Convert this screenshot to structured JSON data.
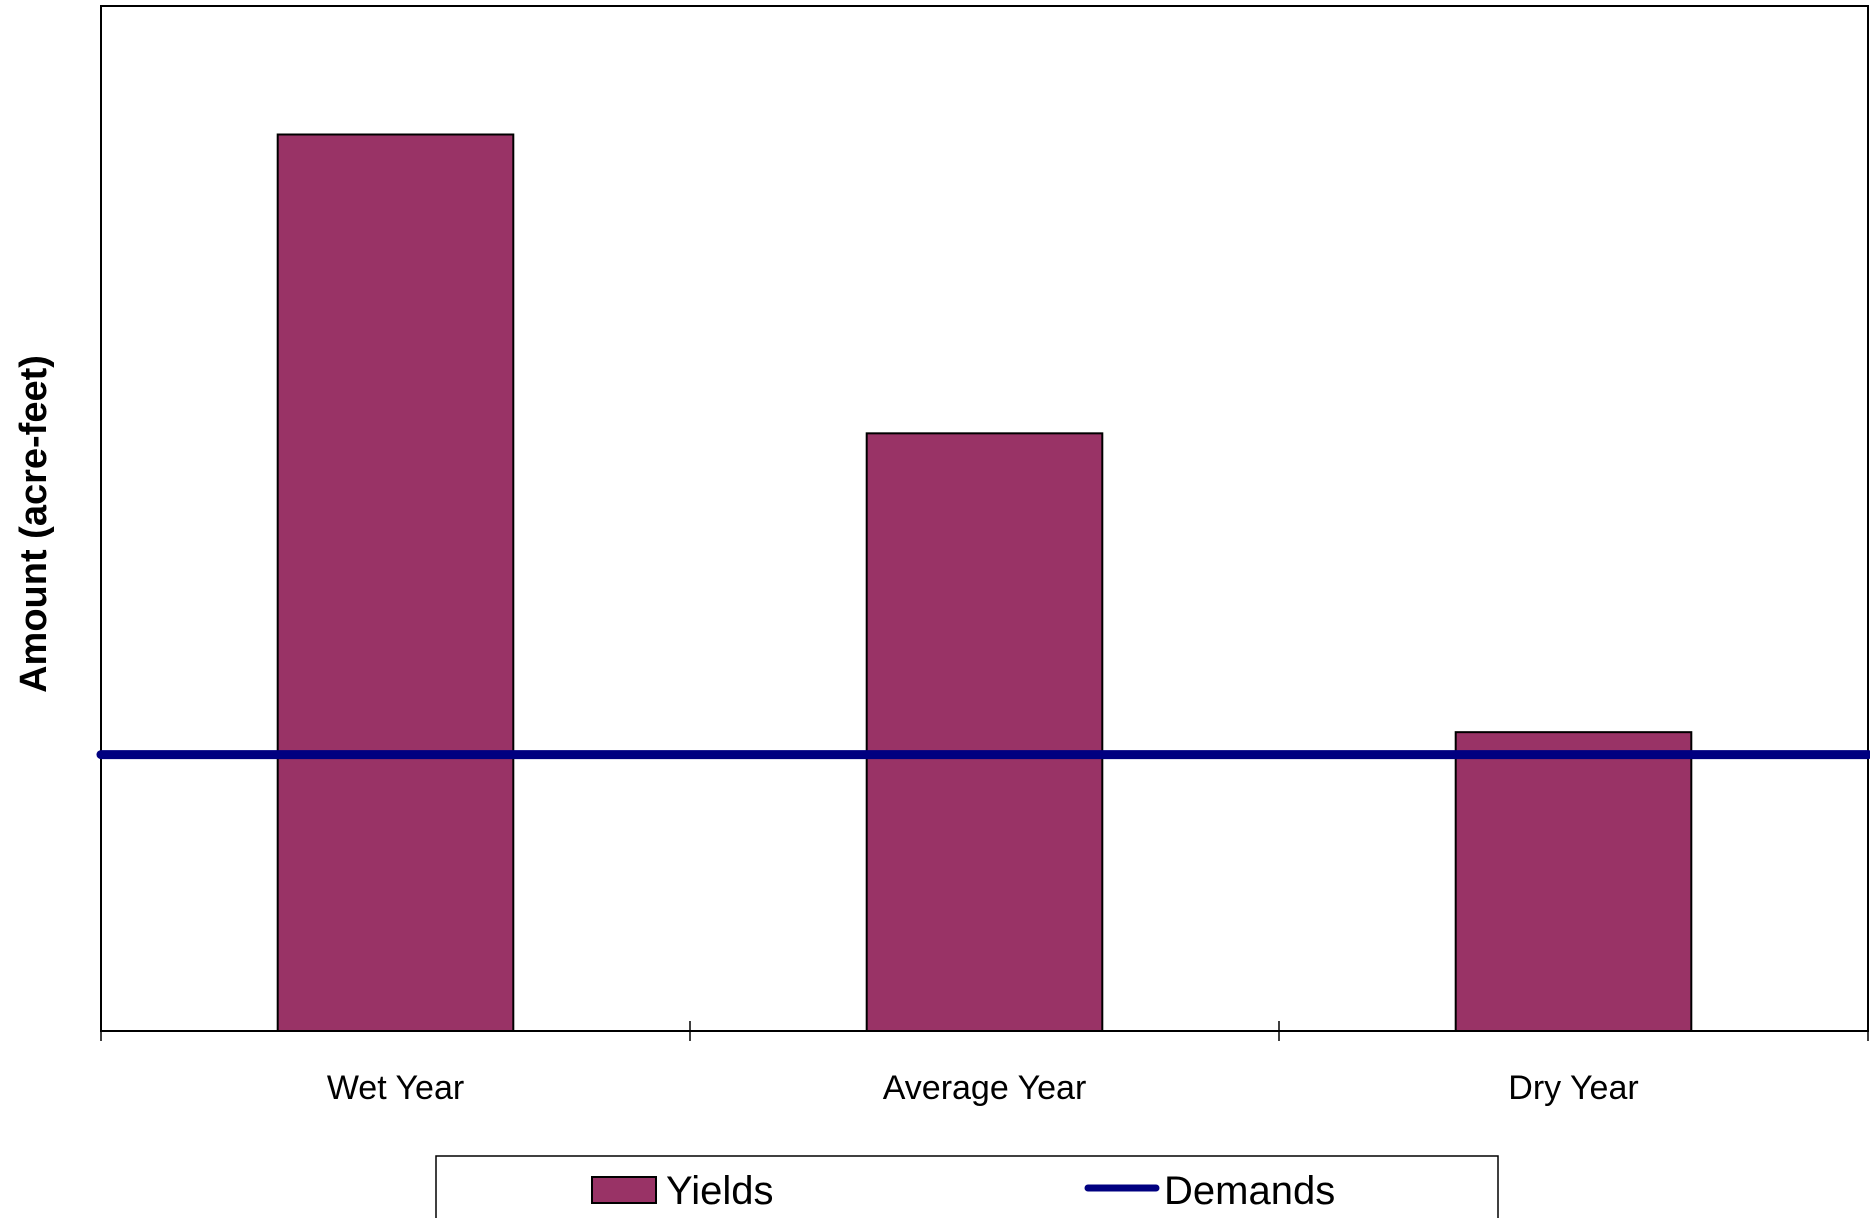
{
  "chart_data": {
    "type": "bar",
    "title": "",
    "xlabel": "",
    "ylabel": "Amount (acre-feet)",
    "categories": [
      "Wet Year",
      "Average Year",
      "Dry Year"
    ],
    "series": [
      {
        "name": "Yields",
        "type": "bar",
        "values": [
          3.0,
          2.0,
          1.0
        ],
        "color": "#993366"
      },
      {
        "name": "Demands",
        "type": "line",
        "values": [
          0.925,
          0.925,
          0.925
        ],
        "color": "#000080"
      }
    ],
    "ylim": [
      0,
      3.43
    ],
    "y_tick_labels_shown": false,
    "grid": false,
    "legend_position": "bottom"
  },
  "colors": {
    "bar_fill": "#993366",
    "line": "#000080",
    "axis": "#000000",
    "background": "#ffffff"
  }
}
